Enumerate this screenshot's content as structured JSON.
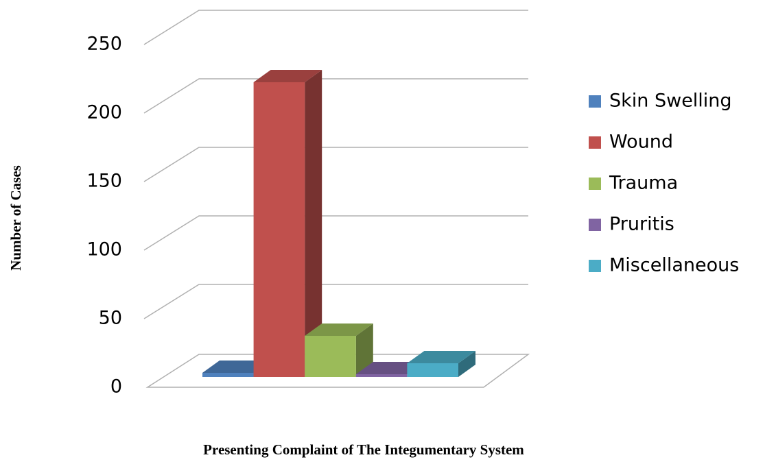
{
  "chart_data": {
    "type": "bar3d",
    "x_label": "Presenting Complaint of The Integumentary System",
    "y_label": "Number of Cases",
    "categories": [
      "Skin Swelling",
      "Wound",
      "Trauma",
      "Pruritis",
      "Miscellaneous"
    ],
    "values": [
      3,
      215,
      30,
      2,
      10
    ],
    "colors": [
      "#4f81bd",
      "#c0504d",
      "#9bbb59",
      "#8064a2",
      "#4bacc6"
    ],
    "ylim": [
      0,
      250
    ],
    "yticks": [
      0,
      50,
      100,
      150,
      200,
      250
    ],
    "grid": true,
    "legend": "right"
  }
}
